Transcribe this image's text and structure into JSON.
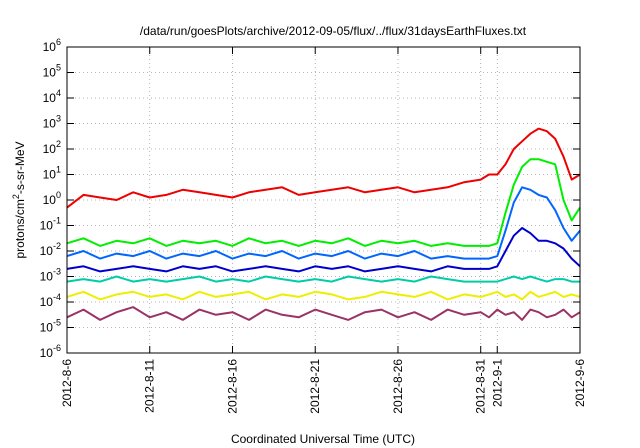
{
  "chart_data": {
    "type": "line",
    "title": "/data/run/goesPlots/archive/2012-09-05/flux/../flux/31daysEarthFluxes.txt",
    "xlabel": "Coordinated Universal Time (UTC)",
    "ylabel": "protons/cm2-s-sr-MeV",
    "ylabel_parts": {
      "base": "protons/cm",
      "sup": "2",
      "rest": "-s-sr-MeV"
    },
    "yscale": "log",
    "ylim": [
      1e-06,
      1000000.0
    ],
    "xlim": [
      0,
      31
    ],
    "y_ticks": [
      {
        "value": -6,
        "base": "10",
        "exp": "-6"
      },
      {
        "value": -5,
        "base": "10",
        "exp": "-5"
      },
      {
        "value": -4,
        "base": "10",
        "exp": "-4"
      },
      {
        "value": -3,
        "base": "10",
        "exp": "-3"
      },
      {
        "value": -2,
        "base": "10",
        "exp": "-2"
      },
      {
        "value": -1,
        "base": "10",
        "exp": "-1"
      },
      {
        "value": 0,
        "base": "10",
        "exp": "0"
      },
      {
        "value": 1,
        "base": "10",
        "exp": "1"
      },
      {
        "value": 2,
        "base": "10",
        "exp": "2"
      },
      {
        "value": 3,
        "base": "10",
        "exp": "3"
      },
      {
        "value": 4,
        "base": "10",
        "exp": "4"
      },
      {
        "value": 5,
        "base": "10",
        "exp": "5"
      },
      {
        "value": 6,
        "base": "10",
        "exp": "6"
      }
    ],
    "x_ticks": [
      {
        "value": 0,
        "label": "2012-8-6"
      },
      {
        "value": 5,
        "label": "2012-8-11"
      },
      {
        "value": 10,
        "label": "2012-8-16"
      },
      {
        "value": 15,
        "label": "2012-8-21"
      },
      {
        "value": 20,
        "label": "2012-8-26"
      },
      {
        "value": 25,
        "label": "2012-8-31"
      },
      {
        "value": 26,
        "label": "2012-9-1"
      },
      {
        "value": 31,
        "label": "2012-9-6"
      }
    ],
    "grid": true,
    "series": [
      {
        "color": "#ee0000",
        "x": [
          0,
          1,
          2,
          3,
          4,
          5,
          6,
          7,
          8,
          9,
          10,
          11,
          12,
          13,
          14,
          15,
          16,
          17,
          18,
          19,
          20,
          21,
          22,
          23,
          24,
          25,
          25.5,
          26,
          26.5,
          27,
          27.5,
          28,
          28.5,
          29,
          29.5,
          30,
          30.5,
          31
        ],
        "y": [
          -0.3,
          0.2,
          0.1,
          0.0,
          0.3,
          0.1,
          0.2,
          0.4,
          0.3,
          0.2,
          0.1,
          0.3,
          0.4,
          0.5,
          0.2,
          0.3,
          0.4,
          0.5,
          0.3,
          0.4,
          0.5,
          0.3,
          0.4,
          0.5,
          0.7,
          0.8,
          1.0,
          1.0,
          1.4,
          2.0,
          2.3,
          2.6,
          2.8,
          2.7,
          2.4,
          1.7,
          0.8,
          1.0
        ]
      },
      {
        "color": "#00ee00",
        "x": [
          0,
          1,
          2,
          3,
          4,
          5,
          6,
          7,
          8,
          9,
          10,
          11,
          12,
          13,
          14,
          15,
          16,
          17,
          18,
          19,
          20,
          21,
          22,
          23,
          24,
          25,
          25.5,
          26,
          26.5,
          27,
          27.5,
          28,
          28.5,
          29,
          29.5,
          30,
          30.5,
          31
        ],
        "y": [
          -1.7,
          -1.5,
          -1.8,
          -1.6,
          -1.7,
          -1.5,
          -1.8,
          -1.6,
          -1.7,
          -1.6,
          -1.8,
          -1.5,
          -1.7,
          -1.6,
          -1.8,
          -1.6,
          -1.7,
          -1.5,
          -1.8,
          -1.6,
          -1.7,
          -1.6,
          -1.8,
          -1.7,
          -1.8,
          -1.8,
          -1.8,
          -1.7,
          -0.5,
          0.6,
          1.3,
          1.6,
          1.6,
          1.5,
          1.4,
          0.0,
          -0.8,
          -0.3
        ]
      },
      {
        "color": "#0066ff",
        "x": [
          0,
          1,
          2,
          3,
          4,
          5,
          6,
          7,
          8,
          9,
          10,
          11,
          12,
          13,
          14,
          15,
          16,
          17,
          18,
          19,
          20,
          21,
          22,
          23,
          24,
          25,
          25.5,
          26,
          26.5,
          27,
          27.5,
          28,
          28.5,
          29,
          29.5,
          30,
          30.5,
          31
        ],
        "y": [
          -2.2,
          -2.0,
          -2.3,
          -2.1,
          -2.2,
          -2.0,
          -2.3,
          -2.1,
          -2.2,
          -2.0,
          -2.3,
          -2.1,
          -2.2,
          -2.0,
          -2.3,
          -2.1,
          -2.2,
          -2.0,
          -2.3,
          -2.1,
          -2.2,
          -2.0,
          -2.3,
          -2.2,
          -2.3,
          -2.3,
          -2.3,
          -2.2,
          -1.2,
          -0.1,
          0.5,
          0.4,
          0.2,
          0.1,
          -0.4,
          -1.1,
          -1.6,
          -1.2
        ]
      },
      {
        "color": "#0000cc",
        "x": [
          0,
          1,
          2,
          3,
          4,
          5,
          6,
          7,
          8,
          9,
          10,
          11,
          12,
          13,
          14,
          15,
          16,
          17,
          18,
          19,
          20,
          21,
          22,
          23,
          24,
          25,
          25.5,
          26,
          26.5,
          27,
          27.5,
          28,
          28.5,
          29,
          29.5,
          30,
          30.5,
          31
        ],
        "y": [
          -2.7,
          -2.6,
          -2.8,
          -2.7,
          -2.6,
          -2.7,
          -2.8,
          -2.6,
          -2.7,
          -2.6,
          -2.8,
          -2.7,
          -2.6,
          -2.7,
          -2.8,
          -2.6,
          -2.7,
          -2.6,
          -2.8,
          -2.7,
          -2.6,
          -2.7,
          -2.8,
          -2.6,
          -2.7,
          -2.7,
          -2.7,
          -2.6,
          -2.0,
          -1.4,
          -1.1,
          -1.3,
          -1.6,
          -1.6,
          -1.7,
          -1.9,
          -2.3,
          -2.6
        ]
      },
      {
        "color": "#00ccaa",
        "x": [
          0,
          1,
          2,
          3,
          4,
          5,
          6,
          7,
          8,
          9,
          10,
          11,
          12,
          13,
          14,
          15,
          16,
          17,
          18,
          19,
          20,
          21,
          22,
          23,
          24,
          25,
          25.5,
          26,
          26.5,
          27,
          27.5,
          28,
          28.5,
          29,
          29.5,
          30,
          30.5,
          31
        ],
        "y": [
          -3.2,
          -3.1,
          -3.2,
          -3.0,
          -3.2,
          -3.1,
          -3.2,
          -3.1,
          -3.0,
          -3.2,
          -3.1,
          -3.2,
          -3.0,
          -3.1,
          -3.2,
          -3.1,
          -3.2,
          -3.0,
          -3.1,
          -3.2,
          -3.1,
          -3.2,
          -3.0,
          -3.1,
          -3.2,
          -3.2,
          -3.2,
          -3.2,
          -3.1,
          -3.0,
          -3.1,
          -3.0,
          -3.1,
          -3.2,
          -3.1,
          -3.1,
          -3.2,
          -3.2
        ]
      },
      {
        "color": "#eeee00",
        "x": [
          0,
          1,
          2,
          3,
          4,
          5,
          6,
          7,
          8,
          9,
          10,
          11,
          12,
          13,
          14,
          15,
          16,
          17,
          18,
          19,
          20,
          21,
          22,
          23,
          24,
          25,
          25.5,
          26,
          26.5,
          27,
          27.5,
          28,
          28.5,
          29,
          29.5,
          30,
          30.5,
          31
        ],
        "y": [
          -3.8,
          -3.6,
          -3.9,
          -3.7,
          -3.6,
          -3.8,
          -3.7,
          -3.9,
          -3.6,
          -3.8,
          -3.7,
          -3.6,
          -3.9,
          -3.7,
          -3.8,
          -3.6,
          -3.7,
          -3.9,
          -3.8,
          -3.6,
          -3.7,
          -3.8,
          -3.6,
          -3.9,
          -3.7,
          -3.8,
          -3.7,
          -3.6,
          -3.8,
          -3.7,
          -3.9,
          -3.6,
          -3.8,
          -3.7,
          -3.6,
          -3.8,
          -3.7,
          -3.8
        ]
      },
      {
        "color": "#993366",
        "x": [
          0,
          1,
          2,
          3,
          4,
          5,
          6,
          7,
          8,
          9,
          10,
          11,
          12,
          13,
          14,
          15,
          16,
          17,
          18,
          19,
          20,
          21,
          22,
          23,
          24,
          25,
          25.5,
          26,
          26.5,
          27,
          27.5,
          28,
          28.5,
          29,
          29.5,
          30,
          30.5,
          31
        ],
        "y": [
          -4.6,
          -4.3,
          -4.7,
          -4.4,
          -4.2,
          -4.6,
          -4.4,
          -4.7,
          -4.3,
          -4.5,
          -4.4,
          -4.7,
          -4.3,
          -4.5,
          -4.6,
          -4.3,
          -4.5,
          -4.7,
          -4.4,
          -4.3,
          -4.6,
          -4.4,
          -4.7,
          -4.3,
          -4.5,
          -4.4,
          -4.6,
          -4.3,
          -4.5,
          -4.4,
          -4.7,
          -4.3,
          -4.4,
          -4.6,
          -4.5,
          -4.3,
          -4.6,
          -4.4
        ]
      }
    ]
  }
}
